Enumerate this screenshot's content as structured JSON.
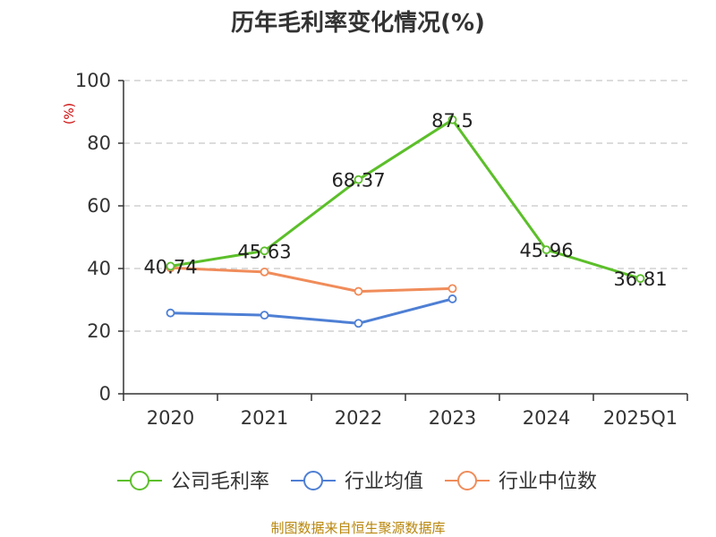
{
  "chart_data": {
    "type": "line",
    "title": "历年毛利率变化情况(%)",
    "ylabel": "(%)",
    "xlabel": "",
    "categories": [
      "2020",
      "2021",
      "2022",
      "2023",
      "2024",
      "2025Q1"
    ],
    "ylim": [
      0,
      100
    ],
    "yticks": [
      0,
      20,
      40,
      60,
      80,
      100
    ],
    "grid": true,
    "legend_position": "bottom",
    "series": [
      {
        "name": "公司毛利率",
        "color": "#5cbf2a",
        "values": [
          40.74,
          45.63,
          68.37,
          87.5,
          45.96,
          36.81
        ],
        "labels": [
          "40.74",
          "45.63",
          "68.37",
          "87.5",
          "45.96",
          "36.81"
        ]
      },
      {
        "name": "行业均值",
        "color": "#4e7fd4",
        "values": [
          25.8,
          25.1,
          22.5,
          30.3,
          null,
          null
        ]
      },
      {
        "name": "行业中位数",
        "color": "#f08c5a",
        "values": [
          40.2,
          38.9,
          32.7,
          33.6,
          null,
          null
        ]
      }
    ]
  },
  "source": "制图数据来自恒生聚源数据库"
}
